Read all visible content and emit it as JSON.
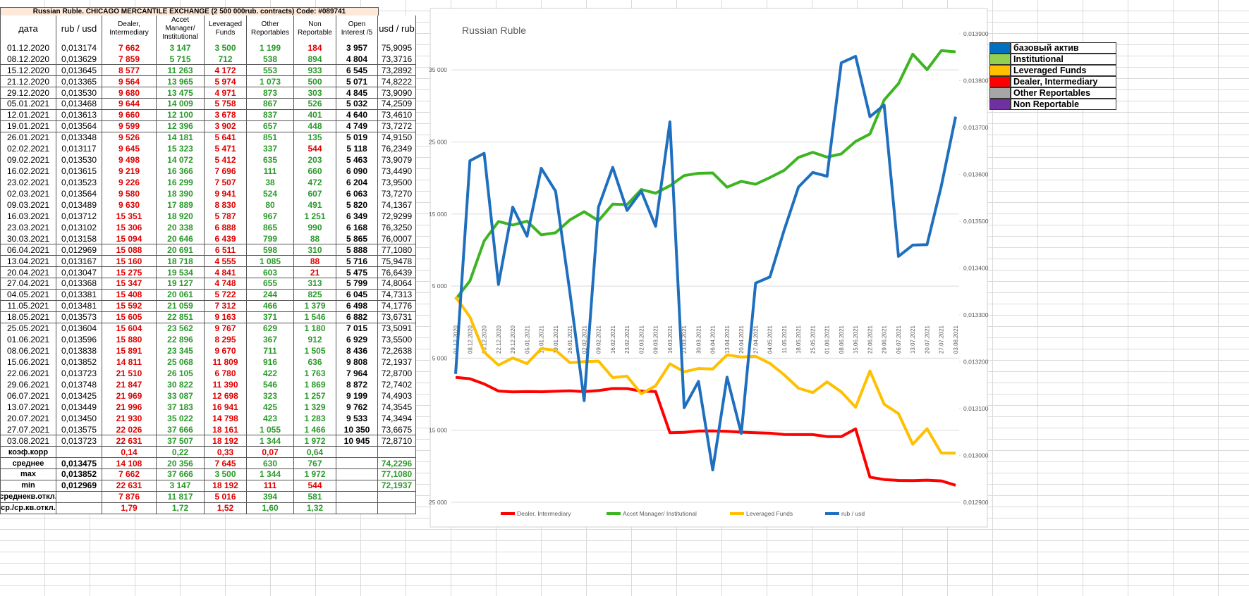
{
  "table": {
    "title": "Russian Ruble. CHICAGO MERCANTILE EXCHANGE (2 500 000rub. contracts) Code: #089741",
    "columns": [
      "дата",
      "rub / usd",
      "Dealer, Intermediary",
      "Accet Manager/ Institutional",
      "Leveraged Funds",
      "Other Reportables",
      "Non Reportable",
      "Open Interest /5",
      "usd / rub"
    ],
    "rows": [
      [
        "01.12.2020",
        "0,013174",
        "7 662",
        "3 147",
        "3 500",
        "1 199",
        "184",
        "3 957",
        "75,9095"
      ],
      [
        "08.12.2020",
        "0,013629",
        "7 859",
        "5 715",
        "712",
        "538",
        "894",
        "4 804",
        "73,3716"
      ],
      [
        "15.12.2020",
        "0,013645",
        "8 577",
        "11 263",
        "4 172",
        "553",
        "933",
        "6 545",
        "73,2892"
      ],
      [
        "21.12.2020",
        "0,013365",
        "9 564",
        "13 965",
        "5 974",
        "1 073",
        "500",
        "5 071",
        "74,8222"
      ],
      [
        "29.12.2020",
        "0,013530",
        "9 680",
        "13 475",
        "4 971",
        "873",
        "303",
        "4 845",
        "73,9090"
      ],
      [
        "05.01.2021",
        "0,013468",
        "9 644",
        "14 009",
        "5 758",
        "867",
        "526",
        "5 032",
        "74,2509"
      ],
      [
        "12.01.2021",
        "0,013613",
        "9 660",
        "12 100",
        "3 678",
        "837",
        "401",
        "4 640",
        "73,4610"
      ],
      [
        "19.01.2021",
        "0,013564",
        "9 599",
        "12 396",
        "3 902",
        "657",
        "448",
        "4 749",
        "73,7272"
      ],
      [
        "26.01.2021",
        "0,013348",
        "9 526",
        "14 181",
        "5 641",
        "851",
        "135",
        "5 019",
        "74,9150"
      ],
      [
        "02.02.2021",
        "0,013117",
        "9 645",
        "15 323",
        "5 471",
        "337",
        "544",
        "5 118",
        "76,2349"
      ],
      [
        "09.02.2021",
        "0,013530",
        "9 498",
        "14 072",
        "5 412",
        "635",
        "203",
        "5 463",
        "73,9079"
      ],
      [
        "16.02.2021",
        "0,013615",
        "9 219",
        "16 366",
        "7 696",
        "111",
        "660",
        "6 090",
        "73,4490"
      ],
      [
        "23.02.2021",
        "0,013523",
        "9 226",
        "16 299",
        "7 507",
        "38",
        "472",
        "6 204",
        "73,9500"
      ],
      [
        "02.03.2021",
        "0,013564",
        "9 580",
        "18 390",
        "9 941",
        "524",
        "607",
        "6 063",
        "73,7270"
      ],
      [
        "09.03.2021",
        "0,013489",
        "9 630",
        "17 889",
        "8 830",
        "80",
        "491",
        "5 820",
        "74,1367"
      ],
      [
        "16.03.2021",
        "0,013712",
        "15 351",
        "18 920",
        "5 787",
        "967",
        "1 251",
        "6 349",
        "72,9299"
      ],
      [
        "23.03.2021",
        "0,013102",
        "15 306",
        "20 338",
        "6 888",
        "865",
        "990",
        "6 168",
        "76,3250"
      ],
      [
        "30.03.2021",
        "0,013158",
        "15 094",
        "20 646",
        "6 439",
        "799",
        "88",
        "5 865",
        "76,0007"
      ],
      [
        "06.04.2021",
        "0,012969",
        "15 088",
        "20 691",
        "6 511",
        "598",
        "310",
        "5 888",
        "77,1080"
      ],
      [
        "13.04.2021",
        "0,013167",
        "15 160",
        "18 718",
        "4 555",
        "1 085",
        "88",
        "5 716",
        "75,9478"
      ],
      [
        "20.04.2021",
        "0,013047",
        "15 275",
        "19 534",
        "4 841",
        "603",
        "21",
        "5 475",
        "76,6439"
      ],
      [
        "27.04.2021",
        "0,013368",
        "15 347",
        "19 127",
        "4 748",
        "655",
        "313",
        "5 799",
        "74,8064"
      ],
      [
        "04.05.2021",
        "0,013381",
        "15 408",
        "20 061",
        "5 722",
        "244",
        "825",
        "6 045",
        "74,7313"
      ],
      [
        "11.05.2021",
        "0,013481",
        "15 592",
        "21 059",
        "7 312",
        "466",
        "1 379",
        "6 498",
        "74,1776"
      ],
      [
        "18.05.2021",
        "0,013573",
        "15 605",
        "22 851",
        "9 163",
        "371",
        "1 546",
        "6 882",
        "73,6731"
      ],
      [
        "25.05.2021",
        "0,013604",
        "15 604",
        "23 562",
        "9 767",
        "629",
        "1 180",
        "7 015",
        "73,5091"
      ],
      [
        "01.06.2021",
        "0,013596",
        "15 880",
        "22 896",
        "8 295",
        "367",
        "912",
        "6 929",
        "73,5500"
      ],
      [
        "08.06.2021",
        "0,013838",
        "15 891",
        "23 345",
        "9 670",
        "711",
        "1 505",
        "8 436",
        "72,2638"
      ],
      [
        "15.06.2021",
        "0,013852",
        "14 811",
        "25 068",
        "11 809",
        "916",
        "636",
        "9 808",
        "72,1937"
      ],
      [
        "22.06.2021",
        "0,013723",
        "21 510",
        "26 105",
        "6 780",
        "422",
        "1 763",
        "7 964",
        "72,8700"
      ],
      [
        "29.06.2021",
        "0,013748",
        "21 847",
        "30 822",
        "11 390",
        "546",
        "1 869",
        "8 872",
        "72,7402"
      ],
      [
        "06.07.2021",
        "0,013425",
        "21 969",
        "33 087",
        "12 698",
        "323",
        "1 257",
        "9 199",
        "74,4903"
      ],
      [
        "13.07.2021",
        "0,013449",
        "21 996",
        "37 183",
        "16 941",
        "425",
        "1 329",
        "9 762",
        "74,3545"
      ],
      [
        "20.07.2021",
        "0,013450",
        "21 930",
        "35 022",
        "14 798",
        "423",
        "1 283",
        "9 533",
        "74,3494"
      ],
      [
        "27.07.2021",
        "0,013575",
        "22 026",
        "37 666",
        "18 161",
        "1 055",
        "1 466",
        "10 350",
        "73,6675"
      ],
      [
        "03.08.2021",
        "0,013723",
        "22 631",
        "37 507",
        "18 192",
        "1 344",
        "1 972",
        "10 945",
        "72,8710"
      ]
    ],
    "summary": [
      [
        "коэф.корр",
        null,
        "0,14",
        "0,22",
        "0,33",
        "0,07",
        "0,64",
        null,
        null
      ],
      [
        "среднее",
        "0,013475",
        "14 108",
        "20 356",
        "7 645",
        "630",
        "767",
        null,
        "74,2296"
      ],
      [
        "max",
        "0,013852",
        "7 662",
        "37 666",
        "3 500",
        "1 344",
        "1 972",
        null,
        "77,1080"
      ],
      [
        "min",
        "0,012969",
        "22 631",
        "3 147",
        "18 192",
        "111",
        "544",
        null,
        "72,1937"
      ],
      [
        "среднекв.откл.",
        null,
        "7 876",
        "11 817",
        "5 016",
        "394",
        "581",
        null,
        null
      ],
      [
        "ср./ср.кв.откл.",
        null,
        "1,79",
        "1,72",
        "1,52",
        "1,60",
        "1,32",
        null,
        null
      ]
    ]
  },
  "color_legend": [
    {
      "label": "базовый актив",
      "color": "#0070c0"
    },
    {
      "label": "Institutional",
      "color": "#92d050"
    },
    {
      "label": "Leveraged Funds",
      "color": "#ffc000"
    },
    {
      "label": "Dealer, Intermediary",
      "color": "#ff0000"
    },
    {
      "label": "Other Reportables",
      "color": "#a6a6a6"
    },
    {
      "label": "Non Reportable",
      "color": "#7030a0"
    }
  ],
  "chart_data": {
    "type": "line",
    "title": "Russian Ruble",
    "categories": [
      "01.12.2020",
      "08.12.2020",
      "15.12.2020",
      "22.12.2020",
      "29.12.2020",
      "05.01.2021",
      "12.01.2021",
      "19.01.2021",
      "26.01.2021",
      "02.02.2021",
      "09.02.2021",
      "16.02.2021",
      "23.02.2021",
      "02.03.2021",
      "09.03.2021",
      "16.03.2021",
      "23.03.2021",
      "30.03.2021",
      "06.04.2021",
      "13.04.2021",
      "20.04.2021",
      "27.04.2021",
      "04.05.2021",
      "11.05.2021",
      "18.05.2021",
      "25.05.2021",
      "01.06.2021",
      "08.06.2021",
      "15.06.2021",
      "22.06.2021",
      "29.06.2021",
      "06.07.2021",
      "13.07.2021",
      "20.07.2021",
      "27.07.2021",
      "03.08.2021"
    ],
    "series": [
      {
        "name": "Dealer, Intermediary",
        "color": "#ff0000",
        "values": [
          -7662,
          -7859,
          -8577,
          -9564,
          -9680,
          -9644,
          -9660,
          -9599,
          -9526,
          -9645,
          -9498,
          -9219,
          -9226,
          -9580,
          -9630,
          -15351,
          -15306,
          -15094,
          -15088,
          -15160,
          -15275,
          -15347,
          -15408,
          -15592,
          -15605,
          -15604,
          -15880,
          -15891,
          -14811,
          -21510,
          -21847,
          -21969,
          -21996,
          -21930,
          -22026,
          -22631
        ]
      },
      {
        "name": "Accet Manager/ Institutional",
        "color": "#3cb521",
        "values": [
          3147,
          5715,
          11263,
          13965,
          13475,
          14009,
          12100,
          12396,
          14181,
          15323,
          14072,
          16366,
          16299,
          18390,
          17889,
          18920,
          20338,
          20646,
          20691,
          18718,
          19534,
          19127,
          20061,
          21059,
          22851,
          23562,
          22896,
          23345,
          25068,
          26105,
          30822,
          33087,
          37183,
          35022,
          37666,
          37507
        ]
      },
      {
        "name": "Leveraged Funds",
        "color": "#ffc000",
        "values": [
          3500,
          712,
          -4172,
          -5974,
          -4971,
          -5758,
          -3678,
          -3902,
          -5641,
          -5471,
          -5412,
          -7696,
          -7507,
          -9941,
          -8830,
          -5787,
          -6888,
          -6439,
          -6511,
          -4555,
          -4841,
          -4748,
          -5722,
          -7312,
          -9163,
          -9767,
          -8295,
          -9670,
          -11809,
          -6780,
          -11390,
          -12698,
          -16941,
          -14798,
          -18161,
          -18192
        ]
      },
      {
        "name": "rub / usd",
        "color": "#1f6fbf",
        "axis": "y2",
        "values": [
          0.013174,
          0.013629,
          0.013645,
          0.013365,
          0.01353,
          0.013468,
          0.013613,
          0.013564,
          0.013348,
          0.013117,
          0.01353,
          0.013615,
          0.013523,
          0.013564,
          0.013489,
          0.013712,
          0.013102,
          0.013158,
          0.012969,
          0.013167,
          0.013047,
          0.013368,
          0.013381,
          0.013481,
          0.013573,
          0.013604,
          0.013596,
          0.013838,
          0.013852,
          0.013723,
          0.013748,
          0.013425,
          0.013449,
          0.01345,
          0.013575,
          0.013723
        ]
      }
    ],
    "ylim": [
      -25000,
      40000
    ],
    "yticks": [
      {
        "value": 35000,
        "label": "35 000"
      },
      {
        "value": 25000,
        "label": "25 000"
      },
      {
        "value": 15000,
        "label": "15 000"
      },
      {
        "value": 5000,
        "label": "5 000"
      },
      {
        "value": -5000,
        "label": "5 000"
      },
      {
        "value": -15000,
        "label": "15 000"
      },
      {
        "value": -25000,
        "label": "25 000"
      }
    ],
    "y2lim": [
      0.0129,
      0.0139
    ],
    "y2ticks": [
      {
        "value": 0.0139,
        "label": "0,013900"
      },
      {
        "value": 0.0138,
        "label": "0,013800"
      },
      {
        "value": 0.0137,
        "label": "0,013700"
      },
      {
        "value": 0.0136,
        "label": "0,013600"
      },
      {
        "value": 0.0135,
        "label": "0,013500"
      },
      {
        "value": 0.0134,
        "label": "0,013400"
      },
      {
        "value": 0.0133,
        "label": "0,013300"
      },
      {
        "value": 0.0132,
        "label": "0,013200"
      },
      {
        "value": 0.0131,
        "label": "0,013100"
      },
      {
        "value": 0.013,
        "label": "0,013000"
      },
      {
        "value": 0.0129,
        "label": "0,012900"
      }
    ],
    "grid": true,
    "legend": "bottom"
  }
}
